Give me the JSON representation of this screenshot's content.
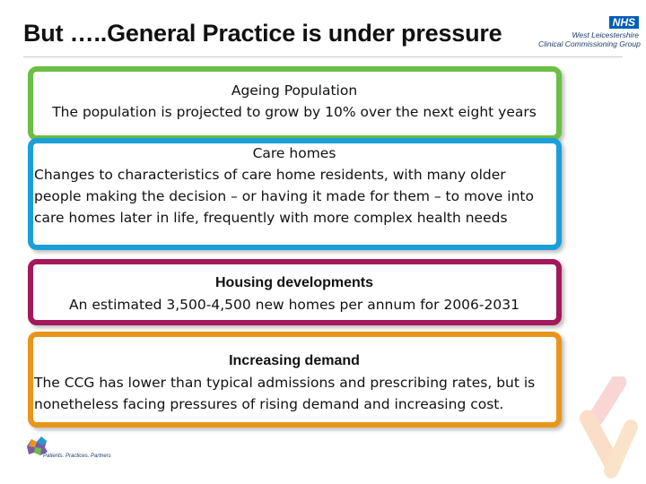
{
  "slide": {
    "title": "But …..General Practice is under pressure"
  },
  "logo": {
    "nhs": "NHS",
    "line1": "West Leicestershire",
    "line2": "Clinical Commissioning Group"
  },
  "cards": [
    {
      "heading": "Ageing Population",
      "body": "The population is projected to grow by 10% over the next eight years",
      "color": "#6cbe45"
    },
    {
      "heading": "Care homes",
      "body": "Changes  to characteristics of care home residents, with many older people making the decision – or having it made for them – to move into care homes later in life, frequently with more complex health needs",
      "color": "#1a9fd9"
    },
    {
      "heading": "Housing developments",
      "body": "An estimated 3,500-4,500 new homes per annum for 2006-2031",
      "color": "#a3195b"
    },
    {
      "heading": "Increasing demand",
      "body": "The CCG has lower than typical admissions and prescribing rates, but is nonetheless facing pressures of rising demand and increasing cost.",
      "color": "#e8961b"
    }
  ],
  "footer": {
    "tagline": "Patients. Practices. Partners"
  }
}
